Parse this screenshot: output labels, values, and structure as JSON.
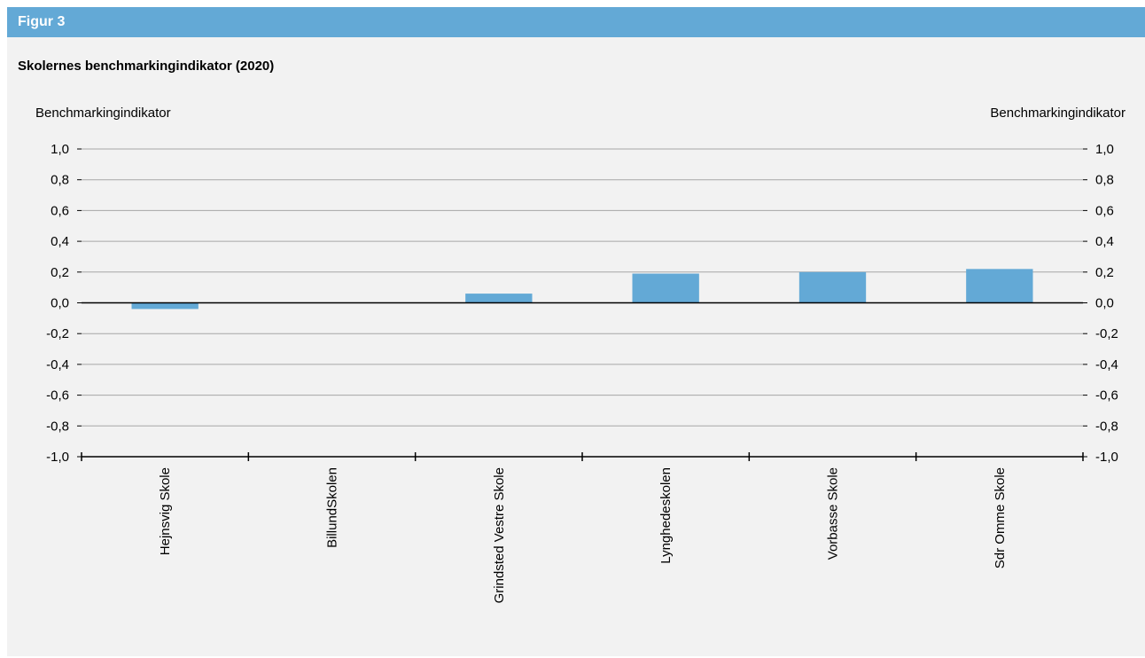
{
  "header": {
    "label": "Figur 3"
  },
  "chart_data": {
    "type": "bar",
    "title": "Skolernes benchmarkingindikator (2020)",
    "ylabel_left": "Benchmarkingindikator",
    "ylabel_right": "Benchmarkingindikator",
    "ylim": [
      -1.0,
      1.0
    ],
    "yticks": [
      1.0,
      0.8,
      0.6,
      0.4,
      0.2,
      0.0,
      -0.2,
      -0.4,
      -0.6,
      -0.8,
      -1.0
    ],
    "ytick_labels": [
      "1,0",
      "0,8",
      "0,6",
      "0,4",
      "0,2",
      "0,0",
      "-0,2",
      "-0,4",
      "-0,6",
      "-0,8",
      "-1,0"
    ],
    "categories": [
      "Hejnsvig Skole",
      "BillundSkolen",
      "Grindsted Vestre Skole",
      "Lynghedeskolen",
      "Vorbasse Skole",
      "Sdr Omme Skole"
    ],
    "values": [
      -0.04,
      0.0,
      0.06,
      0.19,
      0.2,
      0.22
    ],
    "grid": true,
    "bar_color": "#63a9d6"
  }
}
